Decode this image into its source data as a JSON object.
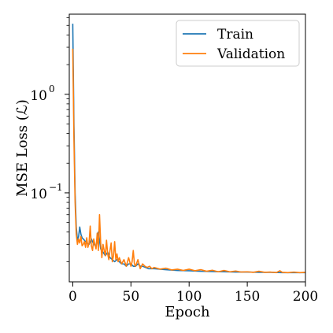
{
  "chart_data": {
    "type": "line",
    "xlabel": "Epoch",
    "ylabel": "MSE Loss (ℒ)",
    "xlim": [
      -3,
      200
    ],
    "ylim": [
      0.0125,
      6.5
    ],
    "yscale": "log",
    "grid": false,
    "legend_position": "top-right",
    "x_ticks": [
      {
        "value": 0,
        "label": "0"
      },
      {
        "value": 50,
        "label": "50"
      },
      {
        "value": 100,
        "label": "100"
      },
      {
        "value": 150,
        "label": "150"
      },
      {
        "value": 200,
        "label": "200"
      }
    ],
    "y_ticks": [
      {
        "value": 1,
        "base": "10",
        "exp": "0"
      },
      {
        "value": 0.1,
        "base": "10",
        "exp": "−1"
      }
    ],
    "series": [
      {
        "name": "Train",
        "color": "#1f77b4",
        "x": [
          0,
          1,
          2,
          3,
          4,
          5,
          6,
          7,
          8,
          9,
          10,
          12,
          14,
          16,
          18,
          20,
          22,
          24,
          26,
          28,
          30,
          32,
          34,
          36,
          38,
          40,
          42,
          44,
          46,
          48,
          50,
          52,
          54,
          56,
          58,
          60,
          65,
          70,
          75,
          80,
          90,
          100,
          110,
          120,
          130,
          140,
          150,
          160,
          170,
          180,
          190,
          200
        ],
        "y": [
          5.2,
          0.5,
          0.1,
          0.045,
          0.033,
          0.036,
          0.045,
          0.038,
          0.035,
          0.034,
          0.033,
          0.031,
          0.03,
          0.034,
          0.03,
          0.029,
          0.04,
          0.027,
          0.025,
          0.023,
          0.025,
          0.022,
          0.021,
          0.02,
          0.021,
          0.02,
          0.019,
          0.019,
          0.018,
          0.019,
          0.019,
          0.018,
          0.018,
          0.019,
          0.018,
          0.018,
          0.017,
          0.017,
          0.0168,
          0.0166,
          0.0163,
          0.0162,
          0.016,
          0.0159,
          0.0158,
          0.0157,
          0.0157,
          0.0156,
          0.0156,
          0.0155,
          0.0155,
          0.0155
        ]
      },
      {
        "name": "Validation",
        "color": "#ff7f0e",
        "x": [
          0,
          1,
          2,
          3,
          4,
          5,
          6,
          7,
          8,
          9,
          10,
          11,
          12,
          13,
          14,
          15,
          16,
          17,
          18,
          19,
          20,
          21,
          22,
          23,
          24,
          25,
          26,
          27,
          28,
          29,
          30,
          31,
          32,
          33,
          34,
          35,
          36,
          37,
          38,
          39,
          40,
          42,
          44,
          46,
          48,
          50,
          51,
          52,
          53,
          54,
          56,
          58,
          60,
          62,
          64,
          66,
          68,
          70,
          75,
          80,
          85,
          90,
          95,
          100,
          105,
          110,
          115,
          120,
          125,
          130,
          135,
          140,
          145,
          150,
          155,
          160,
          165,
          170,
          175,
          178,
          180,
          185,
          190,
          195,
          200
        ],
        "y": [
          2.9,
          0.35,
          0.08,
          0.038,
          0.03,
          0.034,
          0.031,
          0.036,
          0.029,
          0.03,
          0.032,
          0.028,
          0.035,
          0.028,
          0.031,
          0.046,
          0.029,
          0.026,
          0.034,
          0.03,
          0.027,
          0.039,
          0.026,
          0.06,
          0.031,
          0.022,
          0.03,
          0.026,
          0.023,
          0.033,
          0.024,
          0.021,
          0.026,
          0.031,
          0.02,
          0.023,
          0.032,
          0.021,
          0.024,
          0.02,
          0.022,
          0.019,
          0.021,
          0.018,
          0.022,
          0.018,
          0.02,
          0.026,
          0.019,
          0.018,
          0.021,
          0.017,
          0.019,
          0.018,
          0.0175,
          0.018,
          0.017,
          0.0175,
          0.0168,
          0.0172,
          0.0165,
          0.0168,
          0.0163,
          0.0168,
          0.0162,
          0.0166,
          0.016,
          0.0164,
          0.0158,
          0.0163,
          0.0158,
          0.0161,
          0.0157,
          0.0158,
          0.0156,
          0.016,
          0.0156,
          0.0157,
          0.0155,
          0.0162,
          0.0156,
          0.0155,
          0.0157,
          0.0155,
          0.0156
        ]
      }
    ]
  }
}
